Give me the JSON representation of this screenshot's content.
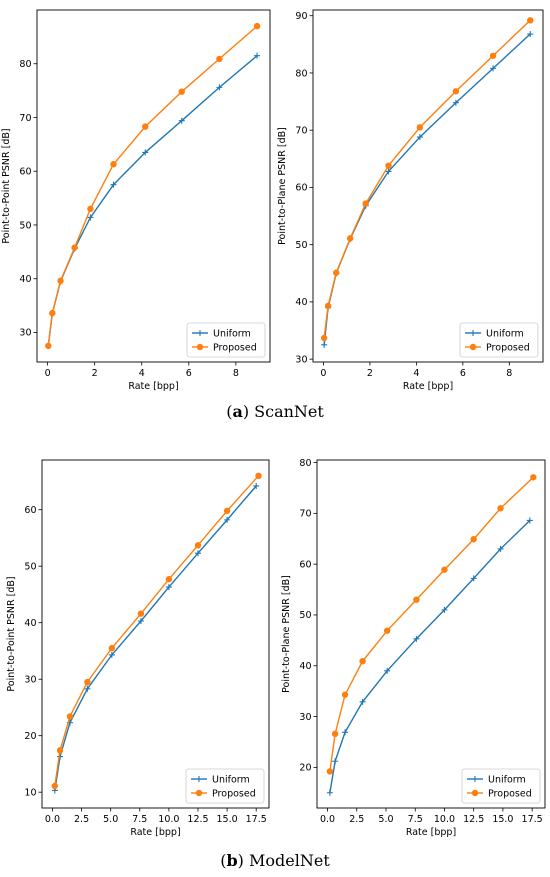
{
  "captions": [
    {
      "letter": "a",
      "text": "ScanNet"
    },
    {
      "letter": "b",
      "text": "ModelNet"
    }
  ],
  "colors": {
    "uniform": "#1f77b4",
    "proposed": "#ff7f0e"
  },
  "chart_data": [
    {
      "id": "scannet-p2p",
      "type": "line",
      "xlabel": "Rate [bpp]",
      "ylabel": "Point-to-Point PSNR [dB]",
      "xlim": [
        -0.45,
        9.45
      ],
      "ylim": [
        24.5,
        90.0
      ],
      "xticks": [
        0,
        2,
        4,
        6,
        8
      ],
      "yticks": [
        30,
        40,
        50,
        60,
        70,
        80
      ],
      "grid": false,
      "legend": "lower-right",
      "series": [
        {
          "name": "Uniform",
          "marker": "plus",
          "x": [
            0.03,
            0.2,
            0.55,
            1.15,
            1.82,
            2.8,
            4.15,
            5.7,
            7.3,
            8.9
          ],
          "y": [
            27.5,
            33.5,
            39.5,
            45.6,
            51.4,
            57.5,
            63.5,
            69.4,
            75.6,
            81.5
          ]
        },
        {
          "name": "Proposed",
          "marker": "circle",
          "x": [
            0.03,
            0.2,
            0.55,
            1.15,
            1.82,
            2.8,
            4.15,
            5.7,
            7.3,
            8.9
          ],
          "y": [
            27.5,
            33.6,
            39.6,
            45.8,
            53.0,
            61.3,
            68.3,
            74.8,
            80.9,
            87.0
          ]
        }
      ]
    },
    {
      "id": "scannet-p2plane",
      "type": "line",
      "xlabel": "Rate [bpp]",
      "ylabel": "Point-to-Plane PSNR [dB]",
      "xlim": [
        -0.45,
        9.45
      ],
      "ylim": [
        29.5,
        91.0
      ],
      "xticks": [
        0,
        2,
        4,
        6,
        8
      ],
      "yticks": [
        30,
        40,
        50,
        60,
        70,
        80,
        90
      ],
      "grid": false,
      "legend": "lower-right",
      "series": [
        {
          "name": "Uniform",
          "marker": "plus",
          "x": [
            0.03,
            0.2,
            0.55,
            1.15,
            1.82,
            2.8,
            4.15,
            5.7,
            7.3,
            8.9
          ],
          "y": [
            32.5,
            39.0,
            45.0,
            51.0,
            56.8,
            62.8,
            68.8,
            74.8,
            80.8,
            86.8
          ]
        },
        {
          "name": "Proposed",
          "marker": "circle",
          "x": [
            0.03,
            0.2,
            0.55,
            1.15,
            1.82,
            2.8,
            4.15,
            5.7,
            7.3,
            8.9
          ],
          "y": [
            33.7,
            39.3,
            45.1,
            51.1,
            57.2,
            63.8,
            70.5,
            76.8,
            83.0,
            89.2
          ]
        }
      ]
    },
    {
      "id": "modelnet-p2p",
      "type": "line",
      "xlabel": "Rate [bpp]",
      "ylabel": "Point-to-Point PSNR [dB]",
      "xlim": [
        -0.9,
        18.6
      ],
      "ylim": [
        7.2,
        68.8
      ],
      "xticks": [
        0.0,
        2.5,
        5.0,
        7.5,
        10.0,
        12.5,
        15.0,
        17.5
      ],
      "yticks": [
        10,
        20,
        30,
        40,
        50,
        60
      ],
      "grid": false,
      "legend": "lower-right",
      "series": [
        {
          "name": "Uniform",
          "marker": "plus",
          "x": [
            0.2,
            0.65,
            1.5,
            3.0,
            5.1,
            7.6,
            10.0,
            12.5,
            15.0,
            17.5
          ],
          "y": [
            10.3,
            16.3,
            22.3,
            28.3,
            34.3,
            40.3,
            46.3,
            52.3,
            58.2,
            64.2
          ]
        },
        {
          "name": "Proposed",
          "marker": "circle",
          "x": [
            0.2,
            0.65,
            1.5,
            3.0,
            5.1,
            7.6,
            10.0,
            12.5,
            15.0,
            17.7
          ],
          "y": [
            11.1,
            17.4,
            23.4,
            29.5,
            35.5,
            41.6,
            47.7,
            53.7,
            59.8,
            66.0
          ]
        }
      ]
    },
    {
      "id": "modelnet-p2plane",
      "type": "line",
      "xlabel": "Rate [bpp]",
      "ylabel": "Point-to-Plane PSNR [dB]",
      "xlim": [
        -0.9,
        18.6
      ],
      "ylim": [
        12.0,
        80.5
      ],
      "xticks": [
        0.0,
        2.5,
        5.0,
        7.5,
        10.0,
        12.5,
        15.0,
        17.5
      ],
      "yticks": [
        20,
        30,
        40,
        50,
        60,
        70,
        80
      ],
      "grid": false,
      "legend": "lower-right",
      "series": [
        {
          "name": "Uniform",
          "marker": "plus",
          "x": [
            0.2,
            0.65,
            1.5,
            3.0,
            5.1,
            7.6,
            10.0,
            12.5,
            14.8,
            17.3
          ],
          "y": [
            15.0,
            21.2,
            26.9,
            32.9,
            39.0,
            45.3,
            51.0,
            57.2,
            63.0,
            68.6
          ]
        },
        {
          "name": "Proposed",
          "marker": "circle",
          "x": [
            0.2,
            0.65,
            1.5,
            3.0,
            5.1,
            7.6,
            10.0,
            12.5,
            14.8,
            17.6
          ],
          "y": [
            19.2,
            26.6,
            34.3,
            40.9,
            46.9,
            53.0,
            58.9,
            64.9,
            71.0,
            77.1
          ]
        }
      ]
    }
  ]
}
